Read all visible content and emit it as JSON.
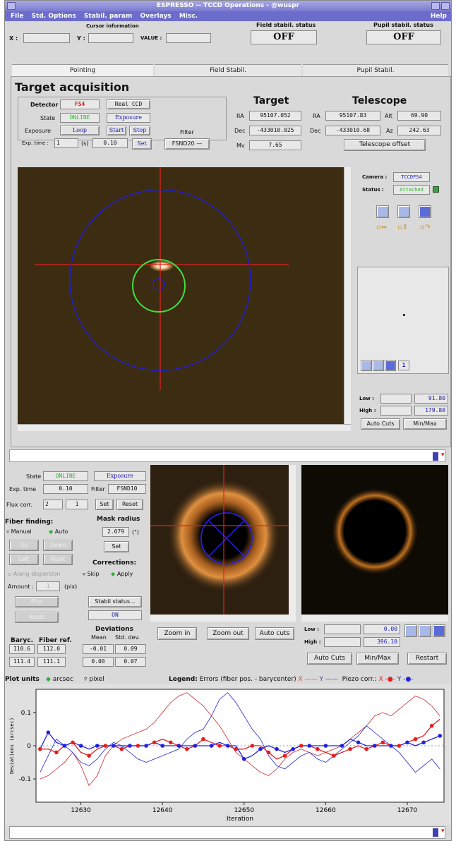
{
  "window": {
    "title": "ESPRESSO -- TCCD Operations - @wuspr",
    "menu": [
      "File",
      "Std. Options",
      "Stabil. param",
      "Overlays",
      "Misc."
    ],
    "help": "Help"
  },
  "cursor_info": {
    "title": "Cursor information",
    "x_label": "X :",
    "y_label": "Y :",
    "value_label": "VALUE :"
  },
  "field_stabil": {
    "label": "Field stabil. status",
    "value": "OFF"
  },
  "pupil_stabil": {
    "label": "Pupil stabil. status",
    "value": "OFF"
  },
  "tabs": [
    "Pointing",
    "Field Stabil.",
    "Pupil Stabil."
  ],
  "acq": {
    "heading": "Target acquisition",
    "detector_label": "Detector",
    "detector_value": "FS4",
    "ccd_value": "Real CCD",
    "state_label": "State",
    "state_value": "ONLINE",
    "state_mode": "Exposure",
    "exposure_label": "Exposure",
    "exposure_value": "Loop",
    "start": "Start",
    "stop": "Stop",
    "exptime_label": "Exp. time :",
    "exptime_count": "1",
    "exptime_unit": "(s)",
    "exptime_value": "0.10",
    "set": "Set",
    "filter_label": "Filter",
    "filter_value": "FSND20"
  },
  "target": {
    "heading": "Target",
    "ra_label": "RA",
    "ra": "95107.052",
    "dec_label": "Dec",
    "dec": "-433010.025",
    "mv_label": "Mv",
    "mv": "7.65"
  },
  "telescope": {
    "heading": "Telescope",
    "ra_label": "RA",
    "ra": "95107.83",
    "alt_label": "Alt",
    "alt": "69.90",
    "dec_label": "Dec",
    "dec": "-433010.68",
    "az_label": "Az",
    "az": "242.63",
    "offset_btn": "Telescope offset"
  },
  "camera": {
    "camera_label": "Camera :",
    "camera_value": "TCCDFS4",
    "status_label": "Status :",
    "status_value": "Attached",
    "zoom_value": "1",
    "low_label": "Low :",
    "low_value": "91.80",
    "high_label": "High :",
    "high_value": "179.80",
    "auto_cuts": "Auto Cuts",
    "minmax": "Min/Max"
  },
  "field": {
    "state_label": "State",
    "state_value": "ONLINE",
    "state_mode": "Exposure",
    "exptime_label": "Exp. time",
    "exptime_value": "0.10",
    "filter_label": "Filter",
    "filter_value": "FSND10",
    "flux_label": "Flux corr.",
    "flux_a": "2",
    "flux_b": "1",
    "set": "Set",
    "reset": "Reset",
    "fiber_finding": "Fiber finding:",
    "manual": "Manual",
    "auto": "Auto",
    "up": "Up",
    "down": "Down",
    "left": "Left",
    "right": "Right",
    "along_dispersion": "Along dispersion",
    "amount_label": "Amount :",
    "amount_value": "1",
    "amount_unit": "(pix)",
    "plus": "Plus",
    "reset_dis": "Reset",
    "mask_radius": "Mask radius",
    "mask_value": "2.079",
    "mask_unit": "(\")",
    "mask_set": "Set",
    "corrections": "Corrections:",
    "skip": "Skip",
    "apply": "Apply",
    "stabil_status_btn": "Stabil status...",
    "stabil_on": "ON",
    "baryc_label": "Baryc.",
    "fiberref_label": "Fiber ref.",
    "dev_label": "Deviations",
    "mean_label": "Mean",
    "std_label": "Std. dev.",
    "row1": [
      "110.6",
      "112.0",
      "-0.01",
      "0.09"
    ],
    "row2": [
      "111.4",
      "111.1",
      "0.00",
      "0.07"
    ],
    "zoom_in": "Zoom in",
    "zoom_out": "Zoom out",
    "auto_cuts": "Auto cuts",
    "low_label": "Low :",
    "low_value": "0.00",
    "high_label": "High :",
    "high_value": "396.10",
    "auto_cuts2": "Auto Cuts",
    "minmax": "Min/Max",
    "restart": "Restart"
  },
  "plot_units": {
    "label": "Plot units",
    "arcsec": "arcsec",
    "pixel": "pixel",
    "legend_label": "Legend:",
    "legend_errors": "Errors (fiber pos. - barycenter)",
    "x": "X",
    "y": "Y",
    "piezo": "Piezo corr.:",
    "colors": {
      "x_line": "#d04040",
      "y_line": "#3a3ad0",
      "x_dot": "#e02020",
      "y_dot": "#2020e0"
    }
  },
  "chart_data": {
    "type": "line",
    "title": "",
    "xlabel": "Iteration",
    "ylabel": "Deviations (arcsec)",
    "xlim": [
      12624.5,
      12674.5
    ],
    "ylim": [
      -0.17,
      0.17
    ],
    "x_ticks": [
      12630,
      12640,
      12650,
      12660,
      12670
    ],
    "y_ticks": [
      0.1,
      0,
      -0.1
    ],
    "x_tick_labels": [
      "12630",
      "12640",
      "12650",
      "12660",
      "12670"
    ],
    "y_tick_labels": [
      "0.1",
      "0",
      "-0.1"
    ],
    "x": [
      12625,
      12626,
      12627,
      12628,
      12629,
      12630,
      12631,
      12632,
      12633,
      12634,
      12635,
      12636,
      12637,
      12638,
      12639,
      12640,
      12641,
      12642,
      12643,
      12644,
      12645,
      12646,
      12647,
      12648,
      12649,
      12650,
      12651,
      12652,
      12653,
      12654,
      12655,
      12656,
      12657,
      12658,
      12659,
      12660,
      12661,
      12662,
      12663,
      12664,
      12665,
      12666,
      12667,
      12668,
      12669,
      12670,
      12671,
      12672,
      12673,
      12674
    ],
    "series": [
      {
        "values": [
          -0.1,
          -0.09,
          -0.07,
          -0.05,
          -0.02,
          -0.06,
          -0.12,
          -0.09,
          -0.03,
          0.0,
          0.02,
          0.03,
          0.04,
          0.05,
          0.07,
          0.1,
          0.13,
          0.15,
          0.16,
          0.14,
          0.12,
          0.09,
          0.06,
          0.02,
          -0.02,
          -0.04,
          -0.06,
          -0.08,
          -0.09,
          -0.07,
          -0.04,
          -0.02,
          -0.01,
          -0.02,
          -0.03,
          -0.02,
          -0.01,
          0.0,
          0.02,
          0.04,
          0.06,
          0.09,
          0.1,
          0.09,
          0.11,
          0.13,
          0.15,
          0.14,
          0.12,
          0.09
        ]
      },
      {
        "values": [
          -0.08,
          -0.03,
          0.02,
          0.0,
          -0.02,
          -0.05,
          -0.06,
          -0.04,
          -0.01,
          0.01,
          0.0,
          -0.02,
          -0.04,
          -0.05,
          -0.04,
          -0.03,
          -0.02,
          -0.01,
          0.02,
          0.04,
          0.05,
          0.09,
          0.14,
          0.16,
          0.13,
          0.09,
          0.05,
          0.02,
          -0.03,
          -0.06,
          -0.07,
          -0.05,
          -0.03,
          -0.02,
          -0.04,
          -0.05,
          -0.03,
          -0.01,
          0.01,
          0.03,
          0.06,
          0.04,
          0.02,
          0.0,
          -0.02,
          -0.05,
          -0.08,
          -0.06,
          -0.04,
          -0.07
        ]
      },
      {
        "values": [
          -0.01,
          -0.01,
          -0.02,
          0.0,
          0.01,
          -0.02,
          -0.03,
          -0.01,
          0.0,
          0.0,
          -0.01,
          0.0,
          0.0,
          0.0,
          0.01,
          0.02,
          0.01,
          0.0,
          -0.01,
          0.0,
          0.02,
          0.01,
          0.0,
          0.0,
          -0.01,
          -0.01,
          0.0,
          0.0,
          -0.02,
          -0.04,
          -0.03,
          -0.01,
          0.0,
          0.0,
          -0.01,
          -0.02,
          -0.03,
          -0.02,
          -0.01,
          0.0,
          -0.01,
          0.0,
          0.01,
          0.0,
          0.0,
          0.01,
          0.02,
          0.03,
          0.06,
          0.08
        ]
      },
      {
        "values": [
          -0.01,
          0.04,
          0.01,
          0.0,
          0.01,
          0.0,
          -0.01,
          0.0,
          0.0,
          0.0,
          0.0,
          0.0,
          0.0,
          0.0,
          0.01,
          0.0,
          0.0,
          0.0,
          0.0,
          0.0,
          0.0,
          0.0,
          0.01,
          0.0,
          0.0,
          -0.04,
          -0.03,
          -0.01,
          0.0,
          -0.01,
          -0.02,
          -0.01,
          0.0,
          0.0,
          0.0,
          0.0,
          0.0,
          0.0,
          0.02,
          0.01,
          0.0,
          0.0,
          0.0,
          0.0,
          0.0,
          0.01,
          0.0,
          0.01,
          0.02,
          0.03
        ]
      }
    ]
  }
}
